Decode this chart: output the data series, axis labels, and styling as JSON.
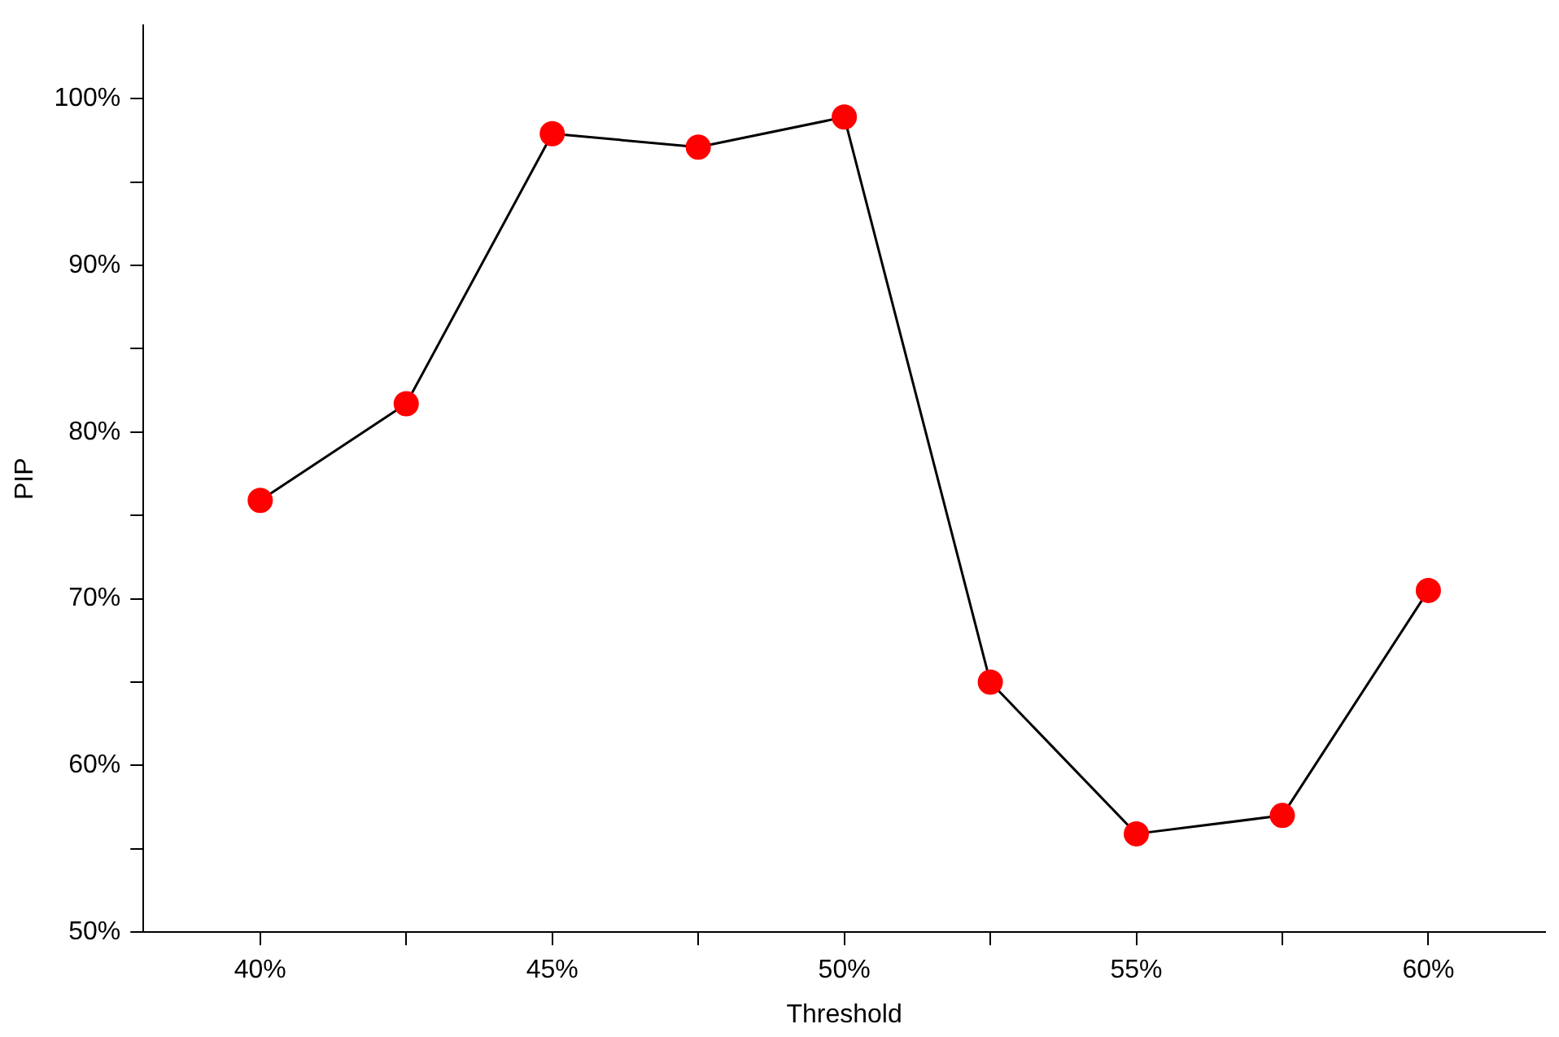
{
  "chart_data": {
    "type": "line",
    "xlabel": "Threshold",
    "ylabel": "PIP",
    "x": [
      40,
      42.5,
      45,
      47.5,
      50,
      52.5,
      55,
      57.5,
      60
    ],
    "series": [
      {
        "color": "#000000",
        "colors": [
          "#ff0000",
          "#ff0000",
          "#ff0000",
          "#ff0000",
          "#ff0000",
          "#ff0000",
          "#ff0000",
          "#ff0000",
          "#ff0000"
        ],
        "values": [
          75.9,
          81.7,
          97.9,
          97.1,
          98.9,
          65.0,
          55.9,
          57.0,
          70.5
        ]
      }
    ],
    "marker": "circle",
    "line_style": "solid",
    "grid": false,
    "legend": false,
    "xlim": [
      38,
      62
    ],
    "xticks": [
      {
        "value": 40,
        "label": "40%"
      },
      {
        "value": 42.5,
        "label": null
      },
      {
        "value": 45,
        "label": "45%"
      },
      {
        "value": 47.5,
        "label": null
      },
      {
        "value": 50,
        "label": "50%"
      },
      {
        "value": 52.5,
        "label": null
      },
      {
        "value": 55,
        "label": "55%"
      },
      {
        "value": 57.5,
        "label": null
      },
      {
        "value": 60,
        "label": "60%"
      }
    ],
    "ylim": [
      50,
      104.4
    ],
    "yticks": [
      {
        "value": 50,
        "label": "50%"
      },
      {
        "value": 55,
        "label": null
      },
      {
        "value": 60,
        "label": "60%"
      },
      {
        "value": 65,
        "label": null
      },
      {
        "value": 70,
        "label": "70%"
      },
      {
        "value": 75,
        "label": null
      },
      {
        "value": 80,
        "label": "80%"
      },
      {
        "value": 85,
        "label": null
      },
      {
        "value": 90,
        "label": "90%"
      },
      {
        "value": 95,
        "label": null
      },
      {
        "value": 100,
        "label": "100%"
      }
    ]
  }
}
